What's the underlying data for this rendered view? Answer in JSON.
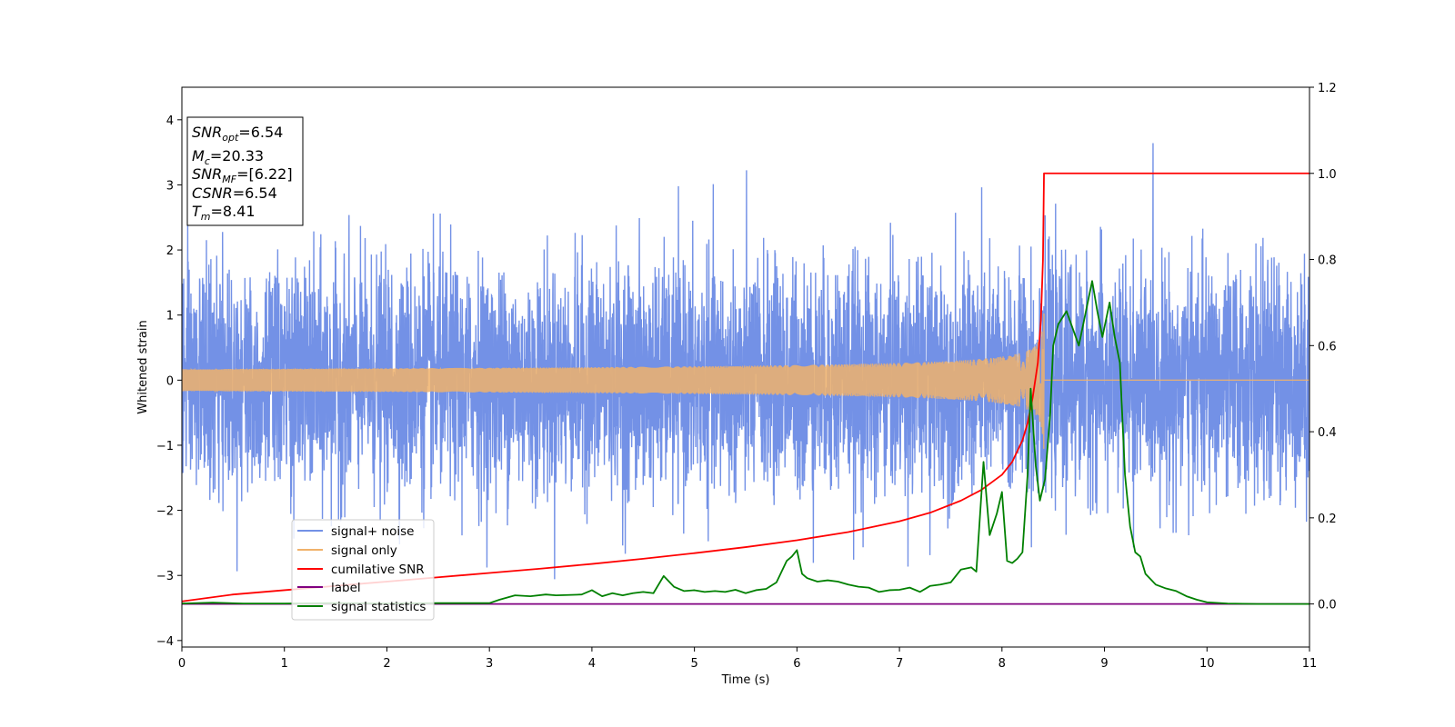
{
  "chart_data": {
    "type": "line",
    "xlabel": "Time (s)",
    "ylabel_left": "Whitened strain",
    "xlim": [
      0,
      11
    ],
    "ylim_left": [
      -4.1,
      4.5
    ],
    "ylim_right": [
      -0.1,
      1.2
    ],
    "x_ticks": [
      "0",
      "1",
      "2",
      "3",
      "4",
      "5",
      "6",
      "7",
      "8",
      "9",
      "10",
      "11"
    ],
    "y_ticks_left": [
      "4",
      "3",
      "2",
      "1",
      "0",
      "−1",
      "−2",
      "−3",
      "−4"
    ],
    "y_ticks_right": [
      "1.2",
      "1.0",
      "0.8",
      "0.6",
      "0.4",
      "0.2",
      "0.0"
    ],
    "grid": false,
    "legend_position": "lower-left",
    "series": [
      {
        "name": "signal+ noise",
        "axis": "left",
        "color": "#7391e6",
        "kind": "gaussian noise with chirp",
        "std": 0.85,
        "x_range": [
          0,
          11
        ]
      },
      {
        "name": "signal only",
        "axis": "left",
        "color": "#f0b26b",
        "kind": "chirp",
        "merger_time": 8.41,
        "peak_amplitude": 1.15,
        "x_range": [
          0,
          11
        ]
      },
      {
        "name": "cumilative SNR",
        "axis": "right",
        "color": "#ff0000",
        "x": [
          0,
          0.5,
          1,
          1.5,
          2,
          2.5,
          3,
          3.5,
          4,
          4.5,
          5,
          5.5,
          6,
          6.5,
          7,
          7.3,
          7.6,
          7.8,
          8.0,
          8.1,
          8.2,
          8.25,
          8.3,
          8.35,
          8.38,
          8.4,
          8.41,
          8.5,
          9,
          10,
          11
        ],
        "values": [
          0.006,
          0.022,
          0.032,
          0.042,
          0.052,
          0.062,
          0.072,
          0.082,
          0.093,
          0.105,
          0.118,
          0.132,
          0.148,
          0.167,
          0.192,
          0.212,
          0.24,
          0.265,
          0.3,
          0.33,
          0.38,
          0.42,
          0.48,
          0.56,
          0.66,
          0.8,
          1.0,
          1.0,
          1.0,
          1.0,
          1.0
        ]
      },
      {
        "name": "label",
        "axis": "right",
        "color": "#800080",
        "x": [
          0,
          11
        ],
        "values": [
          0,
          0
        ]
      },
      {
        "name": "signal statistics",
        "axis": "right",
        "color": "#008000",
        "x": [
          0,
          0.3,
          0.6,
          1,
          1.5,
          2,
          2.5,
          3,
          3.1,
          3.25,
          3.4,
          3.55,
          3.65,
          3.8,
          3.9,
          4.0,
          4.1,
          4.2,
          4.3,
          4.4,
          4.5,
          4.6,
          4.7,
          4.8,
          4.9,
          5.0,
          5.1,
          5.2,
          5.3,
          5.4,
          5.5,
          5.6,
          5.7,
          5.8,
          5.9,
          5.95,
          6.0,
          6.05,
          6.1,
          6.2,
          6.3,
          6.4,
          6.5,
          6.6,
          6.7,
          6.8,
          6.9,
          7.0,
          7.1,
          7.2,
          7.3,
          7.4,
          7.5,
          7.6,
          7.7,
          7.75,
          7.82,
          7.88,
          7.95,
          8.0,
          8.05,
          8.1,
          8.15,
          8.2,
          8.25,
          8.28,
          8.33,
          8.37,
          8.42,
          8.47,
          8.5,
          8.55,
          8.63,
          8.75,
          8.88,
          8.93,
          8.98,
          9.05,
          9.1,
          9.15,
          9.2,
          9.25,
          9.3,
          9.35,
          9.4,
          9.5,
          9.6,
          9.7,
          9.8,
          9.9,
          10.0,
          10.2,
          10.5,
          11
        ],
        "values": [
          0.001,
          0.003,
          0.001,
          0.001,
          0.002,
          0.001,
          0.002,
          0.002,
          0.01,
          0.02,
          0.018,
          0.022,
          0.02,
          0.021,
          0.022,
          0.032,
          0.018,
          0.025,
          0.02,
          0.025,
          0.028,
          0.025,
          0.065,
          0.04,
          0.03,
          0.032,
          0.028,
          0.03,
          0.028,
          0.033,
          0.025,
          0.032,
          0.035,
          0.05,
          0.1,
          0.11,
          0.125,
          0.07,
          0.06,
          0.052,
          0.055,
          0.052,
          0.045,
          0.04,
          0.038,
          0.028,
          0.032,
          0.033,
          0.038,
          0.028,
          0.042,
          0.045,
          0.05,
          0.08,
          0.085,
          0.075,
          0.33,
          0.16,
          0.21,
          0.26,
          0.1,
          0.095,
          0.105,
          0.12,
          0.3,
          0.5,
          0.32,
          0.24,
          0.29,
          0.44,
          0.6,
          0.65,
          0.68,
          0.6,
          0.75,
          0.68,
          0.62,
          0.7,
          0.62,
          0.56,
          0.3,
          0.18,
          0.12,
          0.11,
          0.07,
          0.045,
          0.036,
          0.03,
          0.018,
          0.01,
          0.004,
          0.001,
          0.0,
          0.0
        ]
      }
    ],
    "annotation": {
      "snr_opt": {
        "symbol": "SNR",
        "sub": "opt",
        "value": "=6.54"
      },
      "mc": {
        "symbol": "M",
        "sub": "c",
        "value": "=20.33"
      },
      "snr_mf": {
        "symbol": "SNR",
        "sub": "MF",
        "value": "=[6.22]"
      },
      "csnr": {
        "symbol": "CSNR",
        "value": "=6.54"
      },
      "tm": {
        "symbol": "T",
        "sub": "m",
        "value": "=8.41"
      }
    }
  }
}
